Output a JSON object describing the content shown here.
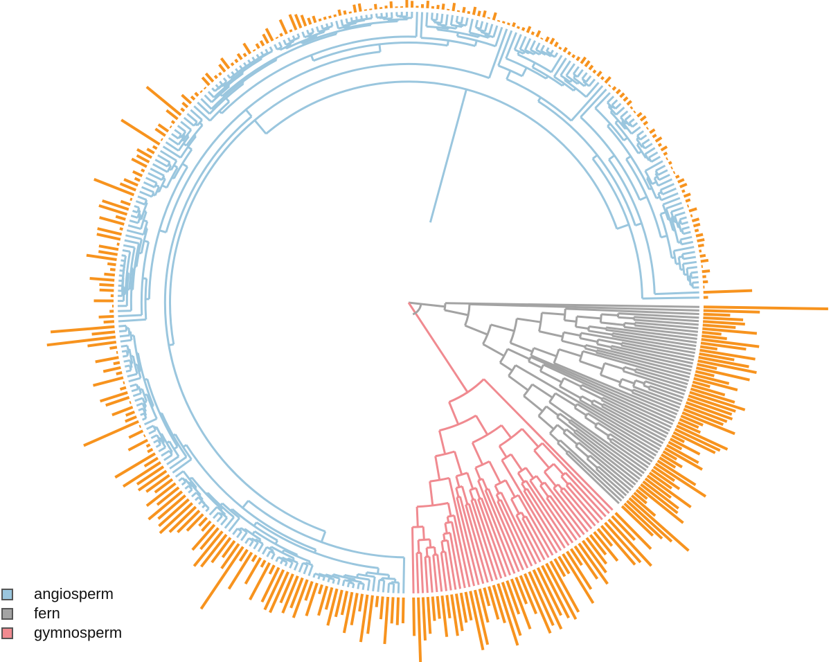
{
  "legend": {
    "items": [
      {
        "label": "angiosperm",
        "color": "#9ac6de"
      },
      {
        "label": "fern",
        "color": "#a3a3a3"
      },
      {
        "label": "gymnosperm",
        "color": "#f08a90"
      }
    ]
  },
  "colors": {
    "bar": "#f7931e",
    "angiosperm": "#9ac6de",
    "fern": "#a3a3a3",
    "gymnosperm": "#f08a90"
  },
  "chart_data": {
    "type": "circular-phylogenetic-tree-with-bar-ring",
    "groups": [
      {
        "name": "angiosperm",
        "tip_count": 268
      },
      {
        "name": "fern",
        "tip_count": 62
      },
      {
        "name": "gymnosperm",
        "tip_count": 48
      }
    ]
  }
}
